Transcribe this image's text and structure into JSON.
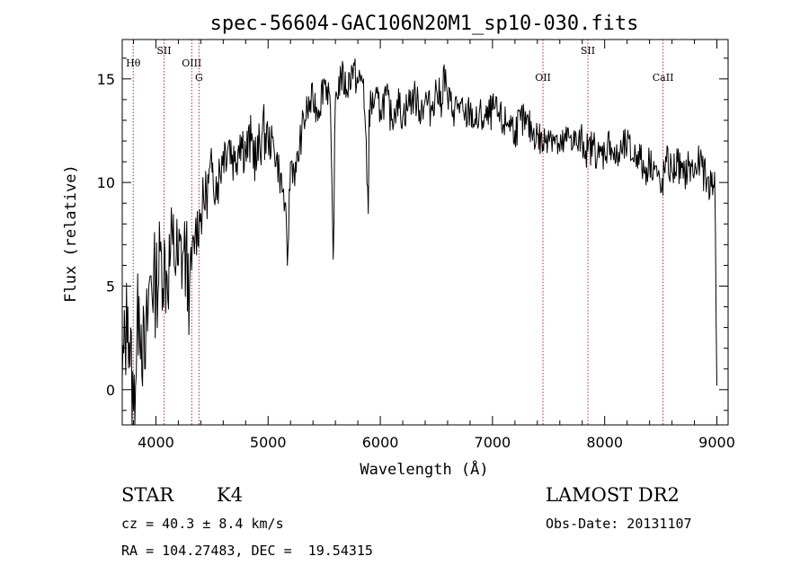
{
  "chart_data": {
    "type": "line",
    "title": "spec-56604-GAC106N20M1_sp10-030.fits",
    "xlabel": "Wavelength (Å)",
    "ylabel": "Flux (relative)",
    "xlim": [
      3700,
      9100
    ],
    "ylim": [
      -1.7,
      16.9
    ],
    "xticks": [
      4000,
      5000,
      6000,
      7000,
      8000,
      9000
    ],
    "yticks": [
      0,
      5,
      10,
      15
    ],
    "colors": {
      "line": "#000000",
      "marker": "#cc2222",
      "axis": "#000000"
    },
    "lines": [
      {
        "label": "Hθ",
        "wavelength": 3798,
        "label_y": 15.6
      },
      {
        "label": "SII",
        "wavelength": 4072,
        "label_y": 16.2
      },
      {
        "label": "OIII",
        "wavelength": 4319,
        "label_y": 15.6
      },
      {
        "label": "G",
        "wavelength": 4384,
        "label_y": 14.9
      },
      {
        "label": "OII",
        "wavelength": 7450,
        "label_y": 14.9
      },
      {
        "label": "SII",
        "wavelength": 7850,
        "label_y": 16.2
      },
      {
        "label": "CaII",
        "wavelength": 8520,
        "label_y": 14.9
      }
    ],
    "series": [
      {
        "name": "flux",
        "x": [
          3700,
          3750,
          3800,
          3850,
          3900,
          3950,
          4000,
          4050,
          4100,
          4150,
          4200,
          4250,
          4300,
          4350,
          4400,
          4450,
          4500,
          4550,
          4600,
          4650,
          4700,
          4750,
          4800,
          4850,
          4900,
          4950,
          5000,
          5050,
          5100,
          5150,
          5172,
          5200,
          5250,
          5300,
          5350,
          5400,
          5450,
          5500,
          5550,
          5580,
          5600,
          5650,
          5700,
          5750,
          5800,
          5850,
          5893,
          5900,
          5950,
          6000,
          6050,
          6100,
          6150,
          6200,
          6250,
          6300,
          6350,
          6400,
          6450,
          6500,
          6550,
          6563,
          6600,
          6650,
          6700,
          6750,
          6800,
          6850,
          6900,
          6950,
          7000,
          7050,
          7100,
          7150,
          7200,
          7250,
          7300,
          7350,
          7400,
          7450,
          7500,
          7550,
          7600,
          7650,
          7700,
          7750,
          7800,
          7850,
          7900,
          7950,
          8000,
          8050,
          8100,
          8150,
          8200,
          8250,
          8300,
          8350,
          8400,
          8450,
          8500,
          8550,
          8600,
          8650,
          8700,
          8750,
          8800,
          8850,
          8900,
          8950,
          8980,
          9000
        ],
        "values": [
          0.5,
          4.0,
          -1.0,
          4.5,
          1.0,
          5.5,
          5.0,
          6.5,
          5.5,
          7.0,
          6.0,
          6.8,
          5.0,
          7.5,
          8.5,
          9.5,
          10.5,
          10.0,
          11.5,
          12.0,
          11.0,
          12.3,
          11.5,
          12.0,
          11.0,
          12.5,
          12.0,
          11.8,
          10.5,
          9.0,
          6.0,
          11.0,
          10.5,
          12.5,
          13.5,
          14.0,
          13.5,
          15.0,
          14.2,
          6.3,
          14.0,
          15.2,
          14.5,
          15.5,
          14.8,
          15.0,
          8.5,
          13.5,
          14.0,
          13.5,
          14.2,
          13.0,
          14.0,
          13.2,
          13.8,
          14.2,
          13.5,
          14.0,
          13.5,
          14.5,
          13.8,
          15.5,
          14.0,
          13.5,
          13.8,
          13.0,
          13.5,
          12.8,
          13.2,
          13.0,
          13.5,
          13.2,
          12.8,
          13.0,
          12.5,
          13.0,
          12.8,
          12.5,
          12.3,
          11.8,
          12.5,
          12.2,
          11.5,
          12.0,
          12.3,
          11.8,
          12.0,
          11.5,
          11.8,
          11.2,
          11.5,
          12.0,
          11.0,
          11.5,
          11.8,
          11.2,
          11.5,
          10.5,
          11.0,
          10.8,
          9.5,
          11.0,
          10.5,
          11.0,
          10.2,
          10.8,
          10.5,
          11.0,
          10.2,
          9.8,
          10.5,
          0.2
        ]
      }
    ]
  },
  "info": {
    "object_class": "STAR",
    "subclass": "K4",
    "survey": "LAMOST DR2",
    "cz": "cz = 40.3 ± 8.4 km/s",
    "obs_date": "Obs-Date: 20131107",
    "coords": "RA = 104.27483, DEC =  19.54315"
  }
}
